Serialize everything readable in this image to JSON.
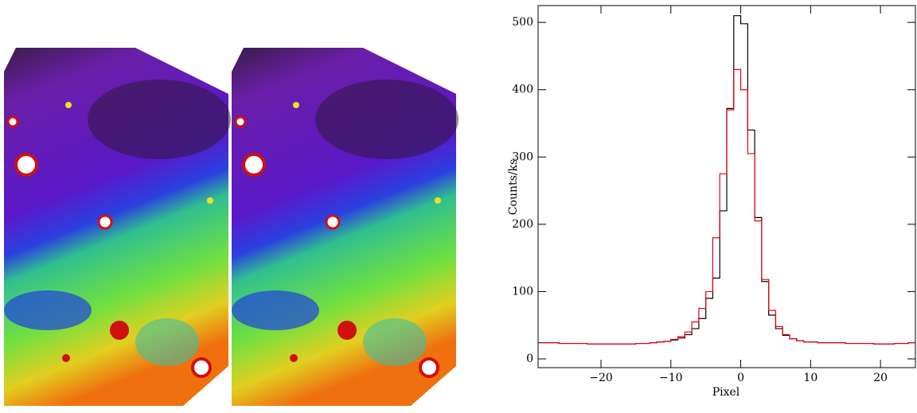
{
  "chart_data": {
    "type": "histogram",
    "xlabel": "Pixel",
    "ylabel": "Counts/ks",
    "bins": [
      -29,
      -28,
      -27,
      -26,
      -25,
      -24,
      -23,
      -22,
      -21,
      -20,
      -19,
      -18,
      -17,
      -16,
      -15,
      -14,
      -13,
      -12,
      -11,
      -10,
      -9,
      -8,
      -7,
      -6,
      -5,
      -4,
      -3,
      -2,
      -1,
      0,
      1,
      2,
      3,
      4,
      5,
      6,
      7,
      8,
      9,
      10,
      11,
      12,
      13,
      14,
      15,
      16,
      17,
      18,
      19,
      20,
      21,
      22,
      23,
      24,
      25
    ],
    "series": [
      {
        "color": "#000000",
        "values": [
          24,
          24,
          24,
          23,
          23,
          23,
          23,
          22,
          22,
          22,
          22,
          22,
          22,
          22,
          23,
          23,
          24,
          25,
          26,
          28,
          31,
          36,
          45,
          60,
          90,
          120,
          220,
          372,
          510,
          498,
          340,
          210,
          115,
          65,
          45,
          35,
          30,
          27,
          25,
          25,
          24,
          24,
          24,
          24,
          23,
          23,
          23,
          23,
          22,
          22,
          22,
          23,
          23,
          24
        ]
      },
      {
        "color": "#e8000b",
        "values": [
          24,
          24,
          24,
          23,
          23,
          23,
          23,
          22,
          22,
          22,
          22,
          22,
          22,
          22,
          23,
          23,
          24,
          25,
          26,
          29,
          33,
          40,
          55,
          75,
          100,
          180,
          275,
          370,
          430,
          400,
          305,
          205,
          118,
          72,
          48,
          36,
          30,
          27,
          25,
          25,
          24,
          24,
          24,
          24,
          23,
          23,
          23,
          23,
          22,
          22,
          22,
          23,
          23,
          24
        ]
      }
    ],
    "xlim": [
      -29,
      25
    ],
    "ylim": [
      -13,
      525
    ],
    "xticks": [
      {
        "value": -20,
        "label": "−20"
      },
      {
        "value": -10,
        "label": "−10"
      },
      0,
      10,
      20
    ],
    "yticks": [
      0,
      100,
      200,
      300,
      400,
      500
    ]
  }
}
